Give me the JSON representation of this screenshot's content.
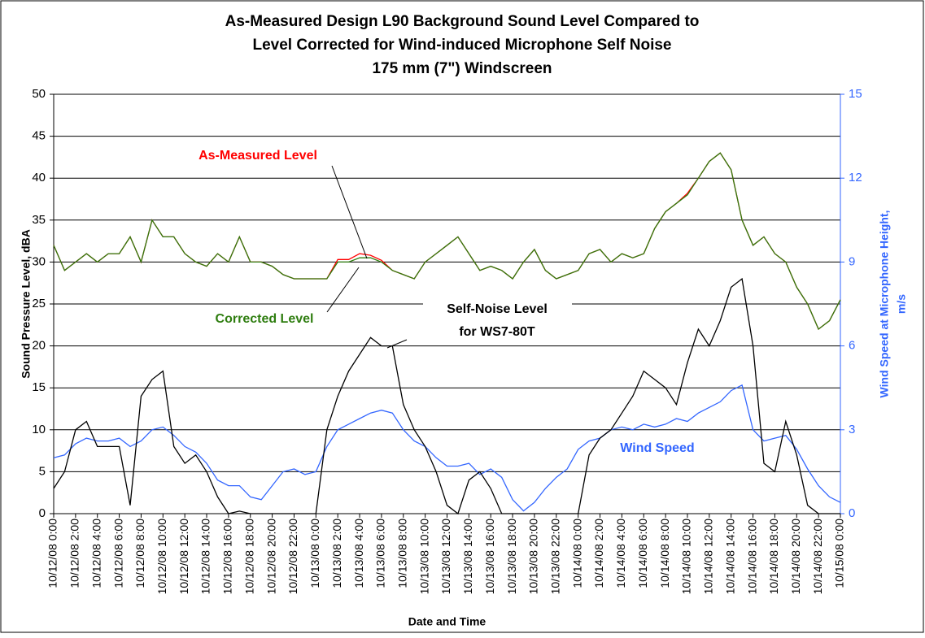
{
  "chart_data": {
    "type": "line",
    "title": [
      "As-Measured Design L90 Background Sound Level Compared to",
      "Level Corrected for Wind-induced Microphone Self Noise",
      "175 mm (7\") Windscreen"
    ],
    "x_label": "Date and Time",
    "y_label": "Sound Pressure Level, dBA",
    "y2_label": [
      "Wind Speed at Microphone Height,",
      "m/s"
    ],
    "annotations": [
      "As-Measured Level",
      "Corrected Level",
      "Self-Noise Level",
      "for WS7-80T",
      "Wind Speed"
    ],
    "categories": [
      "10/12/08 0:00",
      null,
      "10/12/08 2:00",
      null,
      "10/12/08 4:00",
      null,
      "10/12/08 6:00",
      null,
      "10/12/08 8:00",
      null,
      "10/12/08 10:00",
      null,
      "10/12/08 12:00",
      null,
      "10/12/08 14:00",
      null,
      "10/12/08 16:00",
      null,
      "10/12/08 18:00",
      null,
      "10/12/08 20:00",
      null,
      "10/12/08 22:00",
      null,
      "10/13/08 0:00",
      null,
      "10/13/08 2:00",
      null,
      "10/13/08 4:00",
      null,
      "10/13/08 6:00",
      null,
      "10/13/08 8:00",
      null,
      "10/13/08 10:00",
      null,
      "10/13/08 12:00",
      null,
      "10/13/08 14:00",
      null,
      "10/13/08 16:00",
      null,
      "10/13/08 18:00",
      null,
      "10/13/08 20:00",
      null,
      "10/13/08 22:00",
      null,
      "10/14/08 0:00",
      null,
      "10/14/08 2:00",
      null,
      "10/14/08 4:00",
      null,
      "10/14/08 6:00",
      null,
      "10/14/08 8:00",
      null,
      "10/14/08 10:00",
      null,
      "10/14/08 12:00",
      null,
      "10/14/08 14:00",
      null,
      "10/14/08 16:00",
      null,
      "10/14/08 18:00",
      null,
      "10/14/08 20:00",
      null,
      "10/14/08 22:00",
      null,
      "10/15/08 0:00"
    ],
    "series": [
      {
        "color": "#ff0000",
        "values": [
          32,
          29,
          30,
          31,
          30,
          31,
          31,
          33,
          30,
          35,
          33,
          33,
          31,
          30,
          29.5,
          31,
          30,
          33,
          30,
          30,
          29.5,
          28.5,
          28,
          28,
          28,
          28,
          30.3,
          30.3,
          31,
          30.8,
          30.2,
          29,
          28.5,
          28,
          30,
          31,
          32,
          33,
          31,
          29,
          29.5,
          29,
          28,
          30,
          31.5,
          29,
          28,
          28.5,
          29,
          31,
          31.5,
          30,
          31,
          30.5,
          31,
          34,
          36,
          37,
          38.2,
          40,
          42,
          43,
          41,
          35,
          32,
          33,
          31,
          30,
          27,
          25,
          22,
          23,
          25.5
        ]
      },
      {
        "color": "#2e7d0f",
        "values": [
          32,
          29,
          30,
          31,
          30,
          31,
          31,
          33,
          30,
          35,
          33,
          33,
          31,
          30,
          29.5,
          31,
          30,
          33,
          30,
          30,
          29.5,
          28.5,
          28,
          28,
          28,
          28,
          30,
          30,
          30.5,
          30.5,
          30,
          29,
          28.5,
          28,
          30,
          31,
          32,
          33,
          31,
          29,
          29.5,
          29,
          28,
          30,
          31.5,
          29,
          28,
          28.5,
          29,
          31,
          31.5,
          30,
          31,
          30.5,
          31,
          34,
          36,
          37,
          38,
          40,
          42,
          43,
          41,
          35,
          32,
          33,
          31,
          30,
          27,
          25,
          22,
          23,
          25.5
        ]
      },
      {
        "color": "#000000",
        "values": [
          3,
          5,
          10,
          11,
          8,
          8,
          8,
          1,
          14,
          16,
          17,
          8,
          6,
          7,
          5,
          2,
          0,
          0.3,
          0,
          0,
          0,
          0,
          0,
          0,
          0,
          10,
          14,
          17,
          19,
          21,
          20,
          20,
          13,
          10,
          8,
          5,
          1,
          0,
          4,
          5,
          3,
          0,
          0,
          0,
          0,
          0,
          0,
          0,
          0,
          7,
          9,
          10,
          12,
          14,
          17,
          16,
          15,
          13,
          18,
          22,
          20,
          23,
          27,
          28,
          20,
          6,
          5,
          11,
          7,
          1,
          0,
          0,
          0
        ]
      },
      {
        "color": "#3366ff",
        "axis": "y2",
        "values": [
          2.0,
          2.1,
          2.5,
          2.7,
          2.6,
          2.6,
          2.7,
          2.4,
          2.6,
          3.0,
          3.1,
          2.8,
          2.4,
          2.2,
          1.8,
          1.2,
          1.0,
          1.0,
          0.6,
          0.5,
          1.0,
          1.5,
          1.6,
          1.4,
          1.5,
          2.4,
          3.0,
          3.2,
          3.4,
          3.6,
          3.7,
          3.6,
          3.0,
          2.6,
          2.4,
          2.0,
          1.7,
          1.7,
          1.8,
          1.4,
          1.6,
          1.3,
          0.5,
          0.1,
          0.4,
          0.9,
          1.3,
          1.6,
          2.3,
          2.6,
          2.7,
          3.0,
          3.1,
          3.0,
          3.2,
          3.1,
          3.2,
          3.4,
          3.3,
          3.6,
          3.8,
          4.0,
          4.4,
          4.6,
          3.0,
          2.6,
          2.7,
          2.8,
          2.3,
          1.6,
          1.0,
          0.6,
          0.4
        ]
      }
    ],
    "ylim": [
      0,
      50
    ],
    "yticks": [
      0,
      5,
      10,
      15,
      20,
      25,
      30,
      35,
      40,
      45,
      50
    ],
    "y2lim": [
      0,
      15
    ],
    "y2ticks": [
      0,
      3,
      6,
      9,
      12,
      15
    ],
    "y2_color": "#3366ff",
    "grid": true
  }
}
